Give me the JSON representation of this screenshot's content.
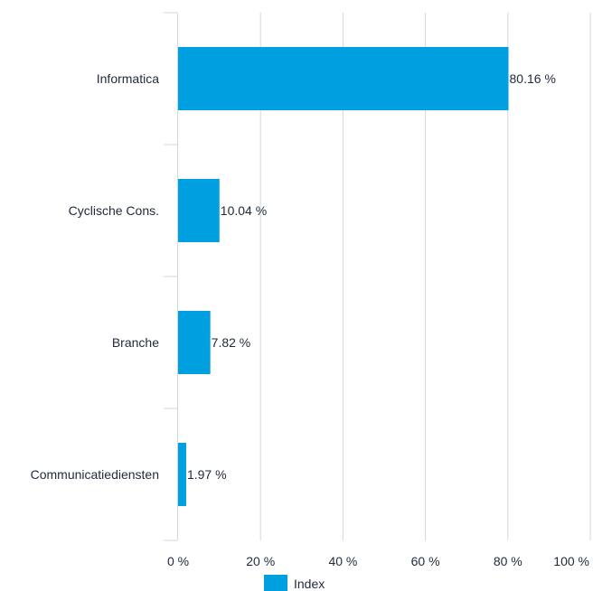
{
  "chart_data": {
    "type": "bar",
    "orientation": "horizontal",
    "categories": [
      "Informatica",
      "Cyclische Cons.",
      "Branche",
      "Communicatiediensten"
    ],
    "series": [
      {
        "name": "Index",
        "values": [
          80.16,
          10.04,
          7.82,
          1.97
        ],
        "value_labels": [
          "80.16 %",
          "10.04 %",
          "7.82 %",
          "1.97 %"
        ],
        "color": "#00a0e0"
      }
    ],
    "xlim": [
      0,
      100
    ],
    "x_ticks": [
      0,
      20,
      40,
      60,
      80,
      100
    ],
    "x_tick_labels": [
      "0 %",
      "20 %",
      "40 %",
      "60 %",
      "80 %",
      "100 %"
    ],
    "grid": "vertical",
    "grid_color": "#d0d8e0",
    "legend_position": "bottom"
  }
}
